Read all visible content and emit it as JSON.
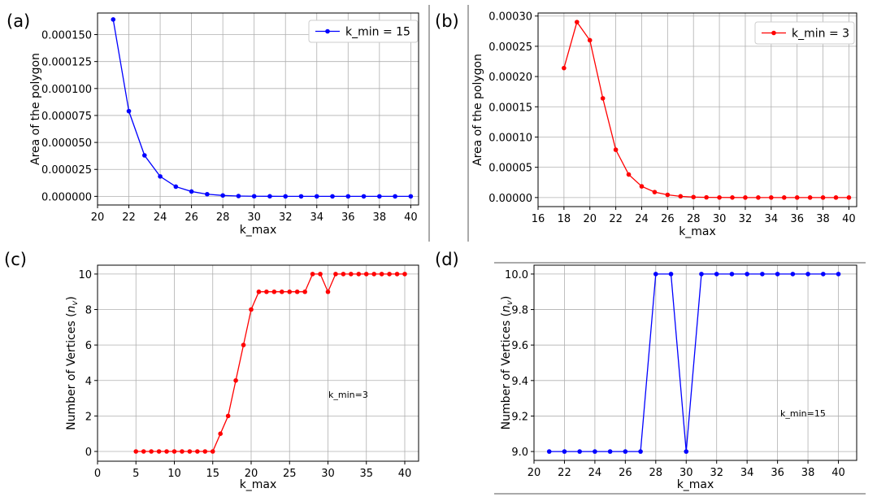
{
  "chart_data": [
    {
      "panel_label": "(a)",
      "type": "line",
      "xlabel": "k_max",
      "ylabel": "Area of the polygon",
      "xlim": [
        20,
        40.5
      ],
      "ylim": [
        -8e-06,
        0.00017
      ],
      "xticks": [
        20,
        22,
        24,
        26,
        28,
        30,
        32,
        34,
        36,
        38,
        40
      ],
      "yticks": [
        0,
        2.5e-05,
        5e-05,
        7.5e-05,
        0.0001,
        0.000125,
        0.00015
      ],
      "ytick_labels": [
        "0.000000",
        "0.000025",
        "0.000050",
        "0.000075",
        "0.000100",
        "0.000125",
        "0.000150"
      ],
      "grid": true,
      "legend": "top-right",
      "series": [
        {
          "name": "k_min = 15",
          "color": "#0000ff",
          "x": [
            21,
            22,
            23,
            24,
            25,
            26,
            27,
            28,
            29,
            30,
            31,
            32,
            33,
            34,
            35,
            36,
            37,
            38,
            39,
            40
          ],
          "y": [
            0.000164,
            7.9e-05,
            3.8e-05,
            1.85e-05,
            9e-06,
            4.5e-06,
            2e-06,
            8e-07,
            3e-07,
            1e-07,
            5e-08,
            0,
            0,
            0,
            0,
            0,
            0,
            0,
            0,
            0
          ]
        }
      ]
    },
    {
      "panel_label": "(b)",
      "type": "line",
      "xlabel": "k_max",
      "ylabel": "Area of the polygon",
      "xlim": [
        16,
        40.6
      ],
      "ylim": [
        -1.5e-05,
        0.000305
      ],
      "xticks": [
        16,
        18,
        20,
        22,
        24,
        26,
        28,
        30,
        32,
        34,
        36,
        38,
        40
      ],
      "yticks": [
        0,
        5e-05,
        0.0001,
        0.00015,
        0.0002,
        0.00025,
        0.0003
      ],
      "ytick_labels": [
        "0.00000",
        "0.00005",
        "0.00010",
        "0.00015",
        "0.00020",
        "0.00025",
        "0.00030"
      ],
      "grid": true,
      "legend": "top-right",
      "series": [
        {
          "name": "k_min = 3",
          "color": "#ff0000",
          "x": [
            18,
            19,
            20,
            21,
            22,
            23,
            24,
            25,
            26,
            27,
            28,
            29,
            30,
            31,
            32,
            33,
            34,
            35,
            36,
            37,
            38,
            39,
            40
          ],
          "y": [
            0.000214,
            0.00029,
            0.00026,
            0.000164,
            7.9e-05,
            3.8e-05,
            1.85e-05,
            9e-06,
            4.5e-06,
            2e-06,
            8e-07,
            3e-07,
            1e-07,
            5e-08,
            0,
            0,
            0,
            0,
            0,
            0,
            0,
            0,
            0
          ]
        }
      ]
    },
    {
      "panel_label": "(c)",
      "type": "line",
      "xlabel": "k_max",
      "ylabel": "Number of Vertices ($n_v$)",
      "xlim": [
        0,
        41.8
      ],
      "ylim": [
        -0.55,
        10.5
      ],
      "xticks": [
        0,
        5,
        10,
        15,
        20,
        25,
        30,
        35,
        40
      ],
      "yticks": [
        0,
        2,
        4,
        6,
        8,
        10
      ],
      "ytick_labels": [
        "0",
        "2",
        "4",
        "6",
        "8",
        "10"
      ],
      "grid": true,
      "annotation": "k_min=3",
      "series": [
        {
          "color": "#ff0000",
          "x": [
            5,
            6,
            7,
            8,
            9,
            10,
            11,
            12,
            13,
            14,
            15,
            16,
            17,
            18,
            19,
            20,
            21,
            22,
            23,
            24,
            25,
            26,
            27,
            28,
            29,
            30,
            31,
            32,
            33,
            34,
            35,
            36,
            37,
            38,
            39,
            40
          ],
          "y": [
            0,
            0,
            0,
            0,
            0,
            0,
            0,
            0,
            0,
            0,
            0,
            1,
            2,
            4,
            6,
            8,
            9,
            9,
            9,
            9,
            9,
            9,
            9,
            10,
            10,
            9,
            10,
            10,
            10,
            10,
            10,
            10,
            10,
            10,
            10,
            10
          ]
        }
      ]
    },
    {
      "panel_label": "(d)",
      "type": "line",
      "xlabel": "k_max",
      "ylabel": "Number of Vertices ($n_v$)",
      "xlim": [
        20,
        41.2
      ],
      "ylim": [
        8.95,
        10.05
      ],
      "xticks": [
        20,
        22,
        24,
        26,
        28,
        30,
        32,
        34,
        36,
        38,
        40
      ],
      "yticks": [
        9.0,
        9.2,
        9.4,
        9.6,
        9.8,
        10.0
      ],
      "ytick_labels": [
        "9.0",
        "9.2",
        "9.4",
        "9.6",
        "9.8",
        "10.0"
      ],
      "grid": true,
      "annotation": "k_min=15",
      "series": [
        {
          "color": "#0000ff",
          "x": [
            21,
            22,
            23,
            24,
            25,
            26,
            27,
            28,
            29,
            30,
            31,
            32,
            33,
            34,
            35,
            36,
            37,
            38,
            39,
            40
          ],
          "y": [
            9,
            9,
            9,
            9,
            9,
            9,
            9,
            10,
            10,
            9,
            10,
            10,
            10,
            10,
            10,
            10,
            10,
            10,
            10,
            10
          ]
        }
      ]
    }
  ]
}
